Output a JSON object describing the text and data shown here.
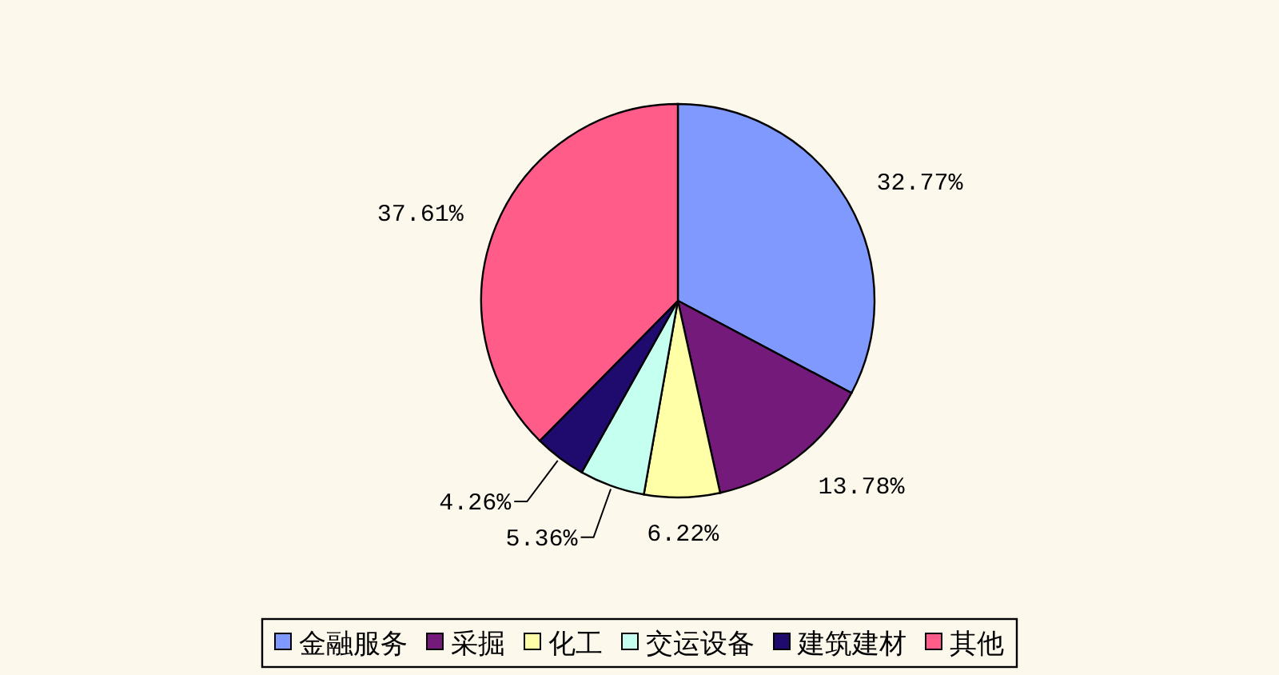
{
  "chart_data": {
    "type": "pie",
    "categories": [
      "金融服务",
      "采掘",
      "化工",
      "交运设备",
      "建筑建材",
      "其他"
    ],
    "values": [
      32.77,
      13.78,
      6.22,
      5.36,
      4.26,
      37.61
    ],
    "colors": [
      "#8099ff",
      "#741a7a",
      "#ffffa8",
      "#c4fff0",
      "#1f0a6e",
      "#ff5c8a"
    ],
    "value_labels": [
      "32.77%",
      "13.78%",
      "6.22%",
      "5.36%",
      "4.26%",
      "37.61%"
    ],
    "legend": "bottom"
  }
}
